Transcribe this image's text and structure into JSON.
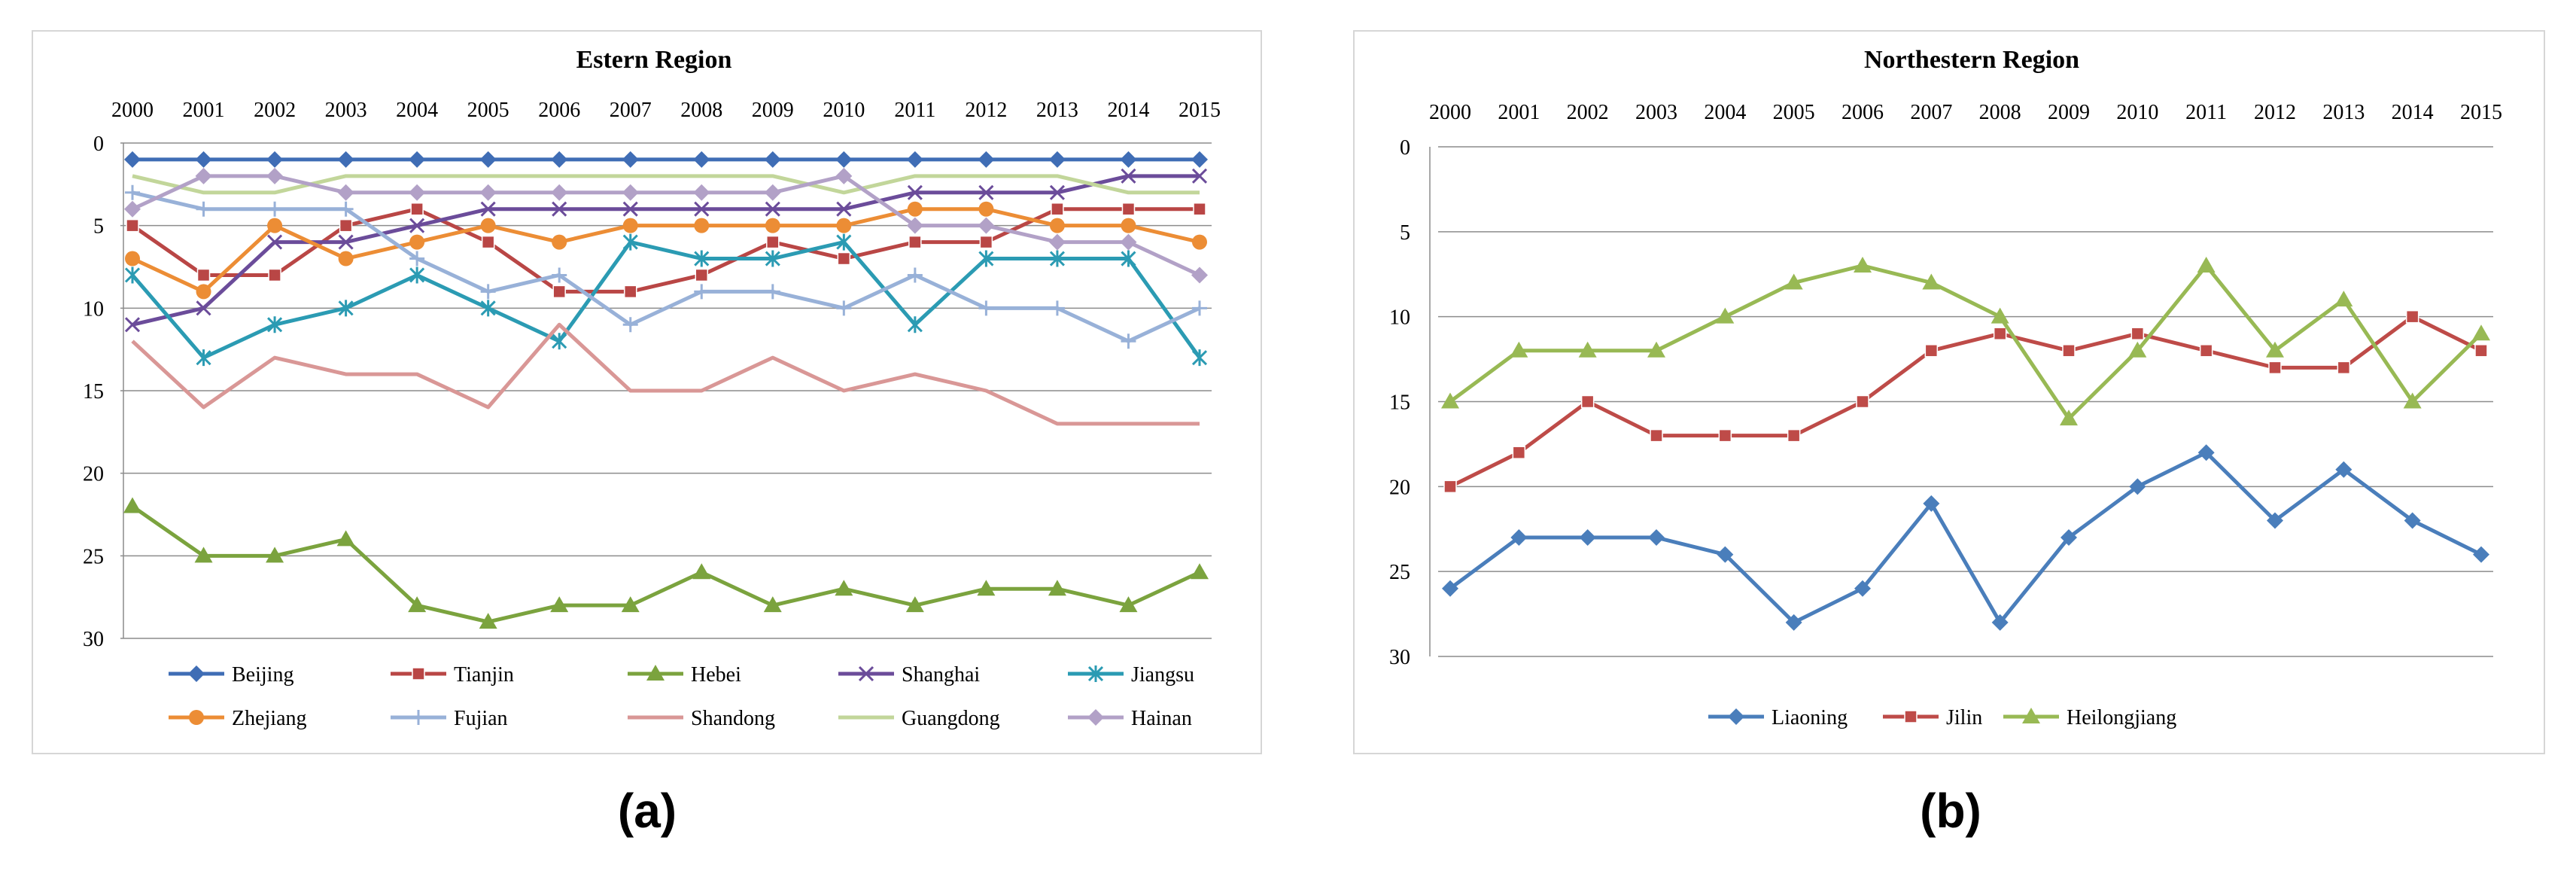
{
  "captions": [
    "(a)",
    "(b)"
  ],
  "chart_data": [
    {
      "type": "line",
      "title": "Estern Region",
      "xlabel": "",
      "ylabel": "",
      "x_position": "top",
      "y_inverted": true,
      "ylim": [
        0,
        30
      ],
      "yticks": [
        0,
        5,
        10,
        15,
        20,
        25,
        30
      ],
      "grid": true,
      "legend": "bottom",
      "categories": [
        "2000",
        "2001",
        "2002",
        "2003",
        "2004",
        "2005",
        "2006",
        "2007",
        "2008",
        "2009",
        "2010",
        "2011",
        "2012",
        "2013",
        "2014",
        "2015"
      ],
      "series": [
        {
          "name": "Beijing",
          "color": "#3f6db5",
          "marker": "diamond",
          "values": [
            1,
            1,
            1,
            1,
            1,
            1,
            1,
            1,
            1,
            1,
            1,
            1,
            1,
            1,
            1,
            1
          ]
        },
        {
          "name": "Tianjin",
          "color": "#b94645",
          "marker": "square",
          "values": [
            5,
            8,
            8,
            5,
            4,
            6,
            9,
            9,
            8,
            6,
            7,
            6,
            6,
            4,
            4,
            4
          ]
        },
        {
          "name": "Hebei",
          "color": "#7ba33e",
          "marker": "triangle",
          "values": [
            22,
            25,
            25,
            24,
            28,
            29,
            28,
            28,
            26,
            28,
            27,
            28,
            27,
            27,
            28,
            26
          ]
        },
        {
          "name": "Shanghai",
          "color": "#6b4c9a",
          "marker": "x",
          "values": [
            11,
            10,
            6,
            6,
            5,
            4,
            4,
            4,
            4,
            4,
            4,
            3,
            3,
            3,
            2,
            2
          ]
        },
        {
          "name": "Jiangsu",
          "color": "#2b9bb3",
          "marker": "star",
          "values": [
            8,
            13,
            11,
            10,
            8,
            10,
            12,
            6,
            7,
            7,
            6,
            11,
            7,
            7,
            7,
            13
          ]
        },
        {
          "name": "Zhejiang",
          "color": "#ec8d35",
          "marker": "circle",
          "values": [
            7,
            9,
            5,
            7,
            6,
            5,
            6,
            5,
            5,
            5,
            5,
            4,
            4,
            5,
            5,
            6
          ]
        },
        {
          "name": "Fujian",
          "color": "#98b1d8",
          "marker": "plus",
          "values": [
            3,
            4,
            4,
            4,
            7,
            9,
            8,
            11,
            9,
            9,
            10,
            8,
            10,
            10,
            12,
            10
          ]
        },
        {
          "name": "Shandong",
          "color": "#d99796",
          "marker": "none",
          "values": [
            12,
            16,
            13,
            14,
            14,
            16,
            11,
            15,
            15,
            13,
            15,
            14,
            15,
            17,
            17,
            17
          ]
        },
        {
          "name": "Guangdong",
          "color": "#c2d69a",
          "marker": "none",
          "values": [
            2,
            3,
            3,
            2,
            2,
            2,
            2,
            2,
            2,
            2,
            3,
            2,
            2,
            2,
            3,
            3
          ]
        },
        {
          "name": "Hainan",
          "color": "#b2a1c7",
          "marker": "diamond",
          "values": [
            4,
            2,
            2,
            3,
            3,
            3,
            3,
            3,
            3,
            3,
            2,
            5,
            5,
            6,
            6,
            8
          ]
        }
      ]
    },
    {
      "type": "line",
      "title": "Northestern Region",
      "xlabel": "",
      "ylabel": "",
      "x_position": "top",
      "y_inverted": true,
      "ylim": [
        0,
        30
      ],
      "yticks": [
        0,
        5,
        10,
        15,
        20,
        25,
        30
      ],
      "grid": true,
      "legend": "bottom",
      "categories": [
        "2000",
        "2001",
        "2002",
        "2003",
        "2004",
        "2005",
        "2006",
        "2007",
        "2008",
        "2009",
        "2010",
        "2011",
        "2012",
        "2013",
        "2014",
        "2015"
      ],
      "series": [
        {
          "name": "Liaoning",
          "color": "#4a7ebb",
          "marker": "diamond",
          "values": [
            26,
            23,
            23,
            23,
            24,
            28,
            26,
            21,
            28,
            23,
            20,
            18,
            22,
            19,
            22,
            24
          ]
        },
        {
          "name": "Jilin",
          "color": "#be4b48",
          "marker": "square",
          "values": [
            20,
            18,
            15,
            17,
            17,
            17,
            15,
            12,
            11,
            12,
            11,
            12,
            13,
            13,
            10,
            12
          ]
        },
        {
          "name": "Heilongjiang",
          "color": "#98b954",
          "marker": "triangle",
          "values": [
            15,
            12,
            12,
            12,
            10,
            8,
            7,
            8,
            10,
            16,
            12,
            7,
            12,
            9,
            15,
            11
          ]
        }
      ]
    }
  ]
}
